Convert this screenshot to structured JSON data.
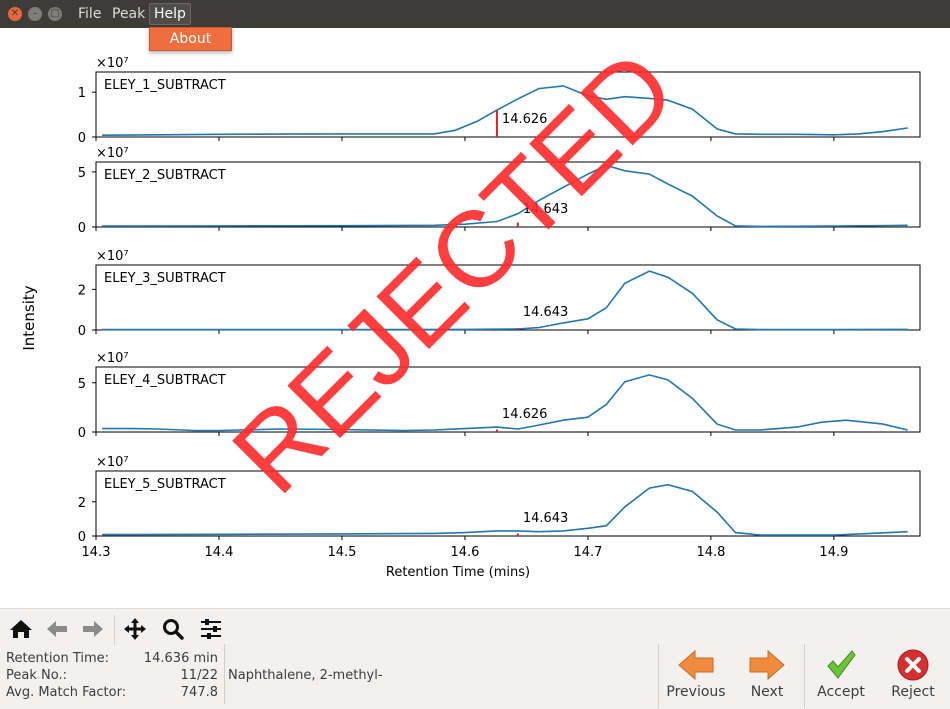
{
  "window": {
    "menus": [
      "File",
      "Peak",
      "Help"
    ],
    "dropdown_item": "About"
  },
  "status": {
    "label": "REJECTED",
    "color": "#ff2a2a"
  },
  "chart_data": {
    "type": "line",
    "xlabel": "Retention Time (mins)",
    "ylabel": "Intensity",
    "xlim": [
      14.3,
      14.97
    ],
    "xticks": [
      "14.3",
      "14.4",
      "14.5",
      "14.6",
      "14.7",
      "14.8",
      "14.9"
    ],
    "scale_label": "×10⁷",
    "line_color": "#1f77b4",
    "marker_color": "#d62728",
    "panels": [
      {
        "name": "ELEY_1_SUBTRACT",
        "ylim": [
          0,
          1.45
        ],
        "yticks": [
          "0",
          "1"
        ],
        "yticks_values": [
          0,
          1
        ],
        "marker_x": 14.626,
        "marker_label": "14.626",
        "marker_height": 0.6,
        "x": [
          14.305,
          14.35,
          14.4,
          14.45,
          14.5,
          14.55,
          14.575,
          14.592,
          14.61,
          14.626,
          14.643,
          14.66,
          14.68,
          14.7,
          14.715,
          14.73,
          14.75,
          14.765,
          14.785,
          14.805,
          14.82,
          14.84,
          14.87,
          14.9,
          14.92,
          14.94,
          14.96
        ],
        "y": [
          0.04,
          0.05,
          0.06,
          0.065,
          0.07,
          0.07,
          0.07,
          0.15,
          0.35,
          0.6,
          0.85,
          1.08,
          1.14,
          0.92,
          0.84,
          0.9,
          0.86,
          0.82,
          0.62,
          0.18,
          0.07,
          0.06,
          0.06,
          0.05,
          0.07,
          0.12,
          0.2
        ]
      },
      {
        "name": "ELEY_2_SUBTRACT",
        "ylim": [
          0,
          5.9
        ],
        "yticks": [
          "0",
          "5"
        ],
        "yticks_values": [
          0,
          5
        ],
        "marker_x": 14.643,
        "marker_label": "14.643",
        "marker_height": 0.4,
        "x": [
          14.305,
          14.4,
          14.5,
          14.575,
          14.6,
          14.626,
          14.643,
          14.66,
          14.68,
          14.7,
          14.715,
          14.73,
          14.75,
          14.765,
          14.785,
          14.805,
          14.82,
          14.84,
          14.9,
          14.96
        ],
        "y": [
          0.08,
          0.1,
          0.12,
          0.15,
          0.25,
          0.5,
          1.2,
          2.4,
          3.6,
          4.8,
          5.6,
          5.1,
          4.8,
          3.9,
          2.8,
          1.0,
          0.1,
          0.05,
          0.08,
          0.15
        ]
      },
      {
        "name": "ELEY_3_SUBTRACT",
        "ylim": [
          0,
          3.2
        ],
        "yticks": [
          "0",
          "2"
        ],
        "yticks_values": [
          0,
          2
        ],
        "marker_x": 14.643,
        "marker_label": "14.643",
        "marker_height": 0.0,
        "x": [
          14.305,
          14.4,
          14.5,
          14.6,
          14.643,
          14.66,
          14.68,
          14.7,
          14.715,
          14.73,
          14.75,
          14.765,
          14.785,
          14.805,
          14.82,
          14.84,
          14.9,
          14.96
        ],
        "y": [
          0.02,
          0.02,
          0.02,
          0.03,
          0.05,
          0.12,
          0.35,
          0.55,
          1.1,
          2.3,
          2.9,
          2.6,
          1.8,
          0.5,
          0.05,
          0.02,
          0.02,
          0.03
        ]
      },
      {
        "name": "ELEY_4_SUBTRACT",
        "ylim": [
          0,
          6.6
        ],
        "yticks": [
          "0",
          "5"
        ],
        "yticks_values": [
          0,
          5
        ],
        "marker_x": 14.626,
        "marker_label": "14.626",
        "marker_height": 0.25,
        "x": [
          14.305,
          14.33,
          14.35,
          14.38,
          14.4,
          14.45,
          14.5,
          14.55,
          14.575,
          14.6,
          14.626,
          14.643,
          14.66,
          14.68,
          14.7,
          14.715,
          14.73,
          14.75,
          14.765,
          14.785,
          14.805,
          14.82,
          14.84,
          14.87,
          14.89,
          14.91,
          14.94,
          14.96
        ],
        "y": [
          0.35,
          0.35,
          0.3,
          0.15,
          0.15,
          0.3,
          0.25,
          0.15,
          0.2,
          0.35,
          0.5,
          0.3,
          0.7,
          1.2,
          1.5,
          2.8,
          5.1,
          5.8,
          5.3,
          3.4,
          0.8,
          0.2,
          0.2,
          0.5,
          1.0,
          1.2,
          0.8,
          0.2
        ]
      },
      {
        "name": "ELEY_5_SUBTRACT",
        "ylim": [
          0,
          3.8
        ],
        "yticks": [
          "0",
          "2"
        ],
        "yticks_values": [
          0,
          2
        ],
        "marker_x": 14.643,
        "marker_label": "14.643",
        "marker_height": 0.15,
        "x": [
          14.305,
          14.4,
          14.5,
          14.575,
          14.6,
          14.626,
          14.643,
          14.66,
          14.68,
          14.7,
          14.715,
          14.73,
          14.75,
          14.765,
          14.785,
          14.805,
          14.82,
          14.84,
          14.9,
          14.96
        ],
        "y": [
          0.08,
          0.1,
          0.12,
          0.15,
          0.2,
          0.3,
          0.3,
          0.25,
          0.3,
          0.45,
          0.6,
          1.7,
          2.8,
          3.0,
          2.6,
          1.4,
          0.2,
          0.05,
          0.05,
          0.25
        ]
      }
    ]
  },
  "toolbar": {
    "icons": [
      "home-icon",
      "back-icon",
      "forward-icon",
      "pan-icon",
      "zoom-icon",
      "configure-icon"
    ]
  },
  "info": {
    "rt_label": "Retention Time:",
    "rt_value": "14.636 min",
    "peak_label": "Peak No.:",
    "peak_value": "11/22",
    "match_label": "Avg. Match Factor:",
    "match_value": "747.8",
    "compound": "Naphthalene, 2-methyl-"
  },
  "nav": {
    "previous": "Previous",
    "next": "Next",
    "accept": "Accept",
    "reject": "Reject"
  }
}
